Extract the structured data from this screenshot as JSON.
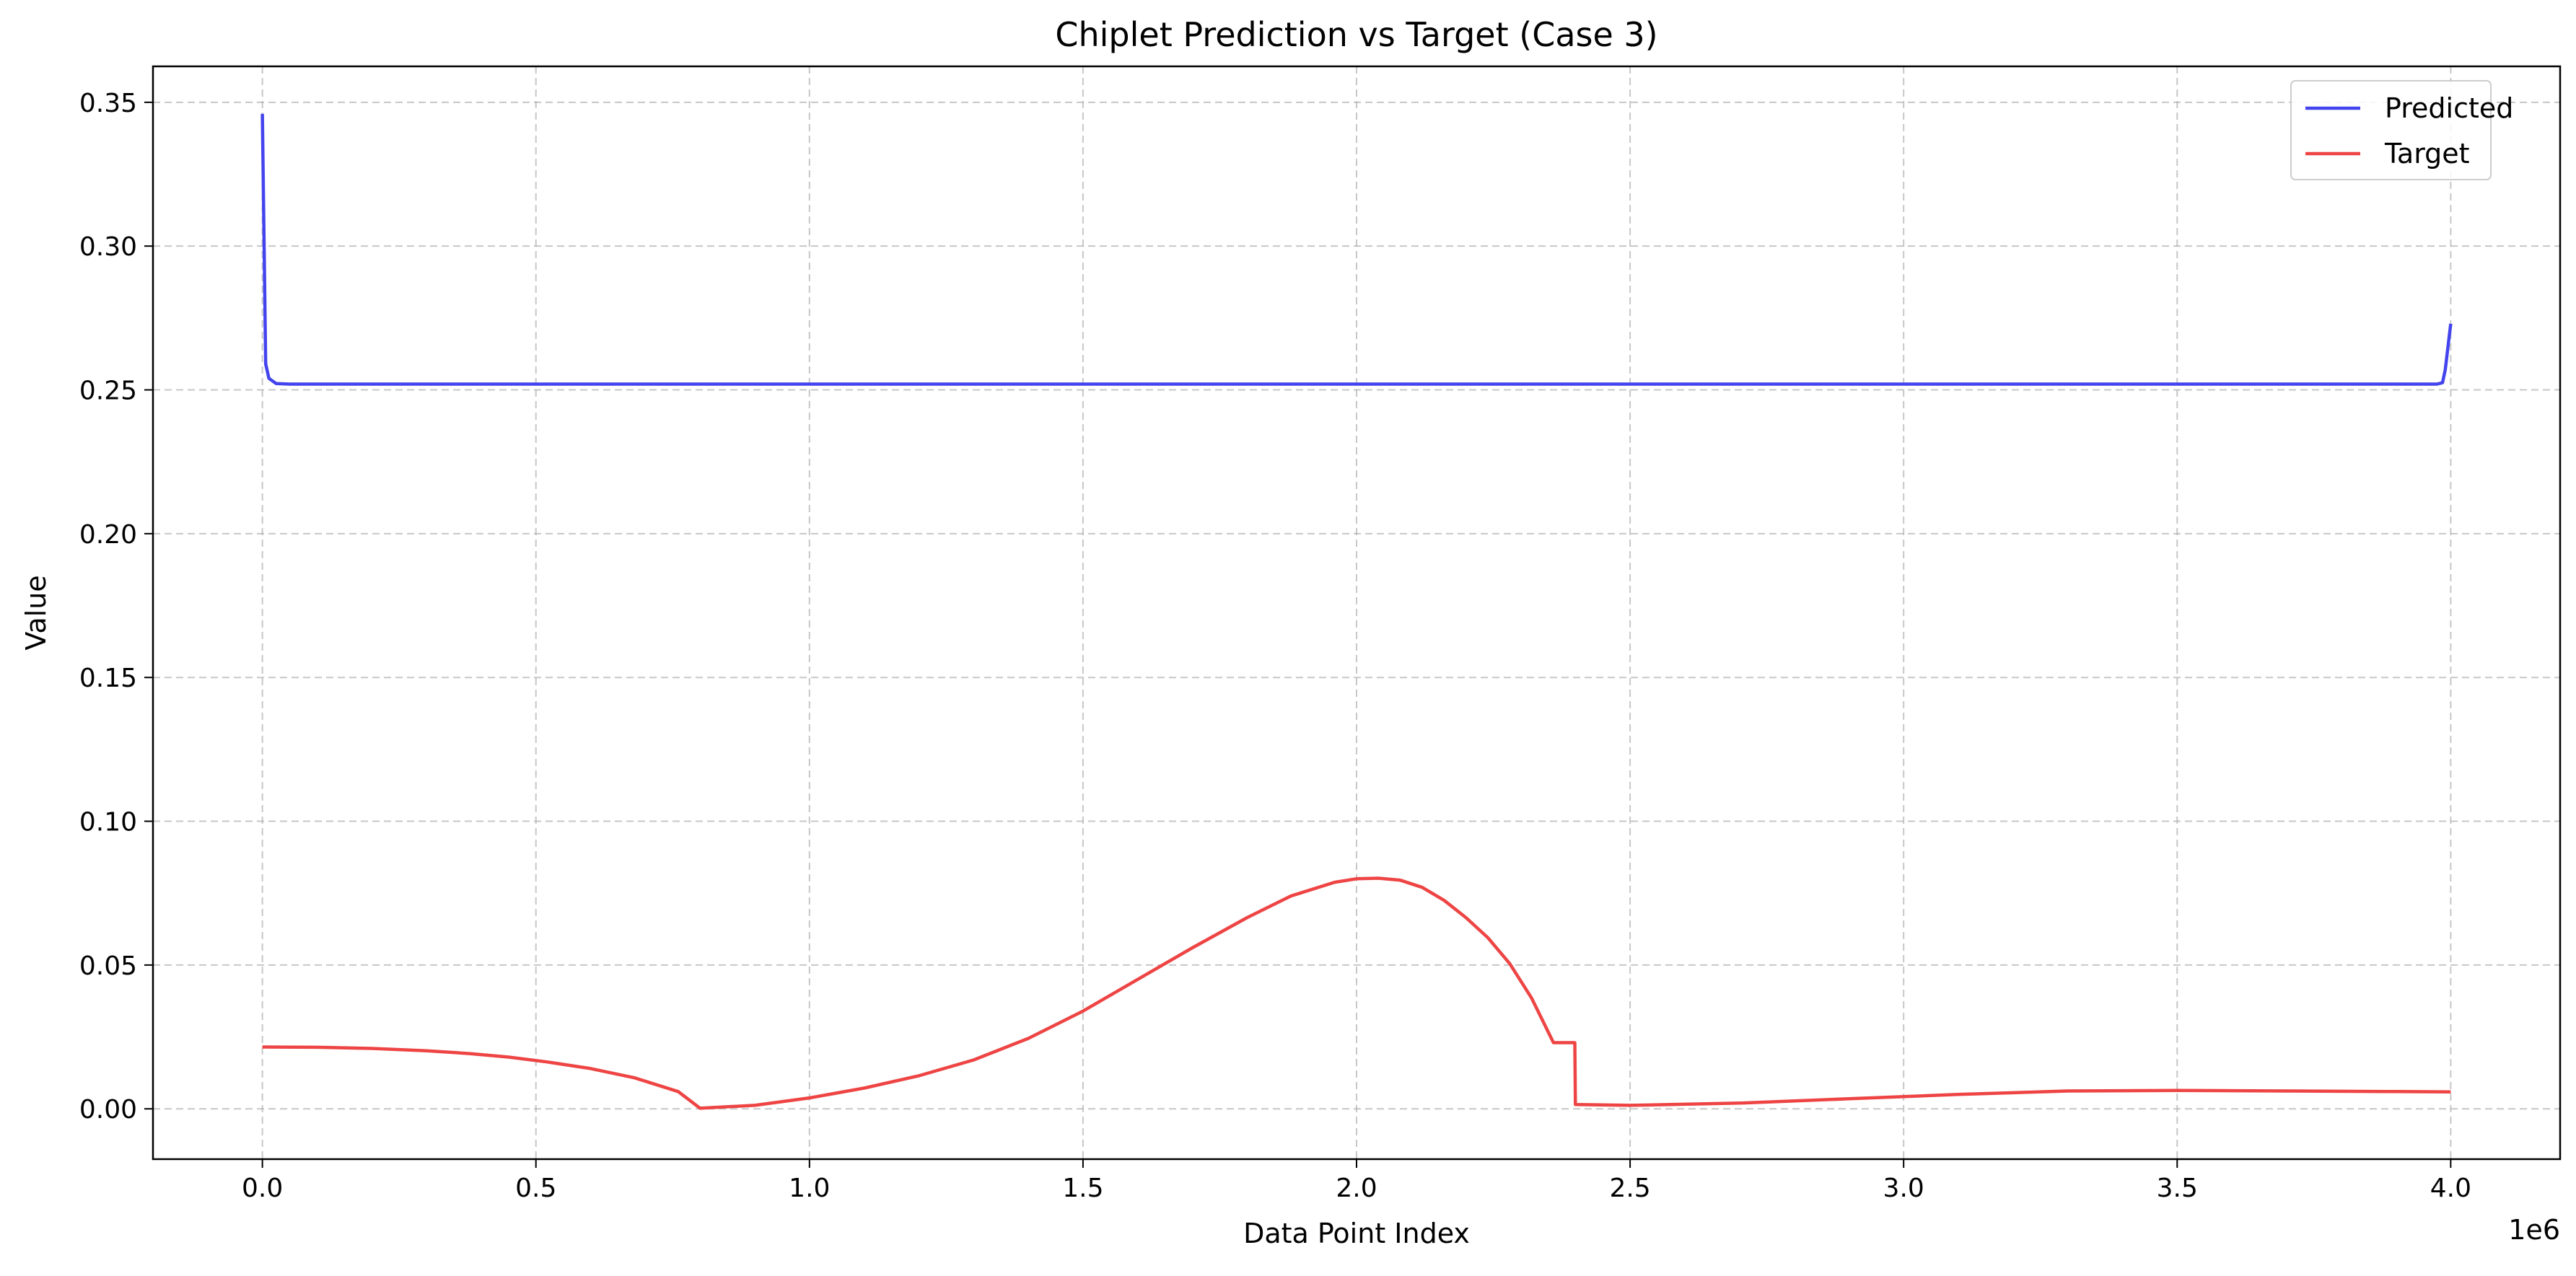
{
  "chart_data": {
    "type": "line",
    "title": "Chiplet Prediction vs Target (Case 3)",
    "xlabel": "Data Point Index",
    "ylabel": "Value",
    "x_offset_label": "1e6",
    "xlim": [
      -200000,
      4200000
    ],
    "ylim": [
      -0.0175,
      0.3625
    ],
    "x_ticks": [
      0,
      500000,
      1000000,
      1500000,
      2000000,
      2500000,
      3000000,
      3500000,
      4000000
    ],
    "x_tick_labels": [
      "0.0",
      "0.5",
      "1.0",
      "1.5",
      "2.0",
      "2.5",
      "3.0",
      "3.5",
      "4.0"
    ],
    "y_ticks": [
      0,
      0.05,
      0.1,
      0.15,
      0.2,
      0.25,
      0.3,
      0.35
    ],
    "y_tick_labels": [
      "0.00",
      "0.05",
      "0.10",
      "0.15",
      "0.20",
      "0.25",
      "0.30",
      "0.35"
    ],
    "grid": true,
    "legend_position": "upper right",
    "series": [
      {
        "name": "Predicted",
        "color": "#4444ee",
        "x": [
          0,
          6000,
          12000,
          25000,
          50000,
          100000,
          500000,
          1000000,
          2000000,
          3000000,
          3950000,
          3975000,
          3985000,
          3990000,
          4000000
        ],
        "y": [
          0.346,
          0.259,
          0.254,
          0.2522,
          0.252,
          0.252,
          0.252,
          0.252,
          0.252,
          0.252,
          0.252,
          0.252,
          0.2525,
          0.257,
          0.273
        ]
      },
      {
        "name": "Target",
        "color": "#ee4444",
        "x": [
          0,
          100000,
          200000,
          300000,
          380000,
          450000,
          520000,
          600000,
          680000,
          760000,
          800000,
          900000,
          1000000,
          1100000,
          1200000,
          1300000,
          1400000,
          1500000,
          1600000,
          1700000,
          1800000,
          1880000,
          1960000,
          2000000,
          2040000,
          2080000,
          2120000,
          2160000,
          2200000,
          2240000,
          2280000,
          2320000,
          2360000,
          2399000,
          2400000,
          2500000,
          2700000,
          2900000,
          3100000,
          3300000,
          3500000,
          3700000,
          3900000,
          4000000
        ],
        "y": [
          0.0215,
          0.0214,
          0.021,
          0.0202,
          0.0192,
          0.018,
          0.0163,
          0.014,
          0.0108,
          0.006,
          0.0002,
          0.0012,
          0.0038,
          0.0072,
          0.0115,
          0.017,
          0.0245,
          0.034,
          0.045,
          0.056,
          0.0665,
          0.074,
          0.0788,
          0.08,
          0.0802,
          0.0795,
          0.077,
          0.0725,
          0.0665,
          0.0595,
          0.0505,
          0.0385,
          0.023,
          0.023,
          0.0015,
          0.0012,
          0.002,
          0.0035,
          0.005,
          0.0062,
          0.0064,
          0.0062,
          0.006,
          0.0059
        ]
      }
    ]
  }
}
